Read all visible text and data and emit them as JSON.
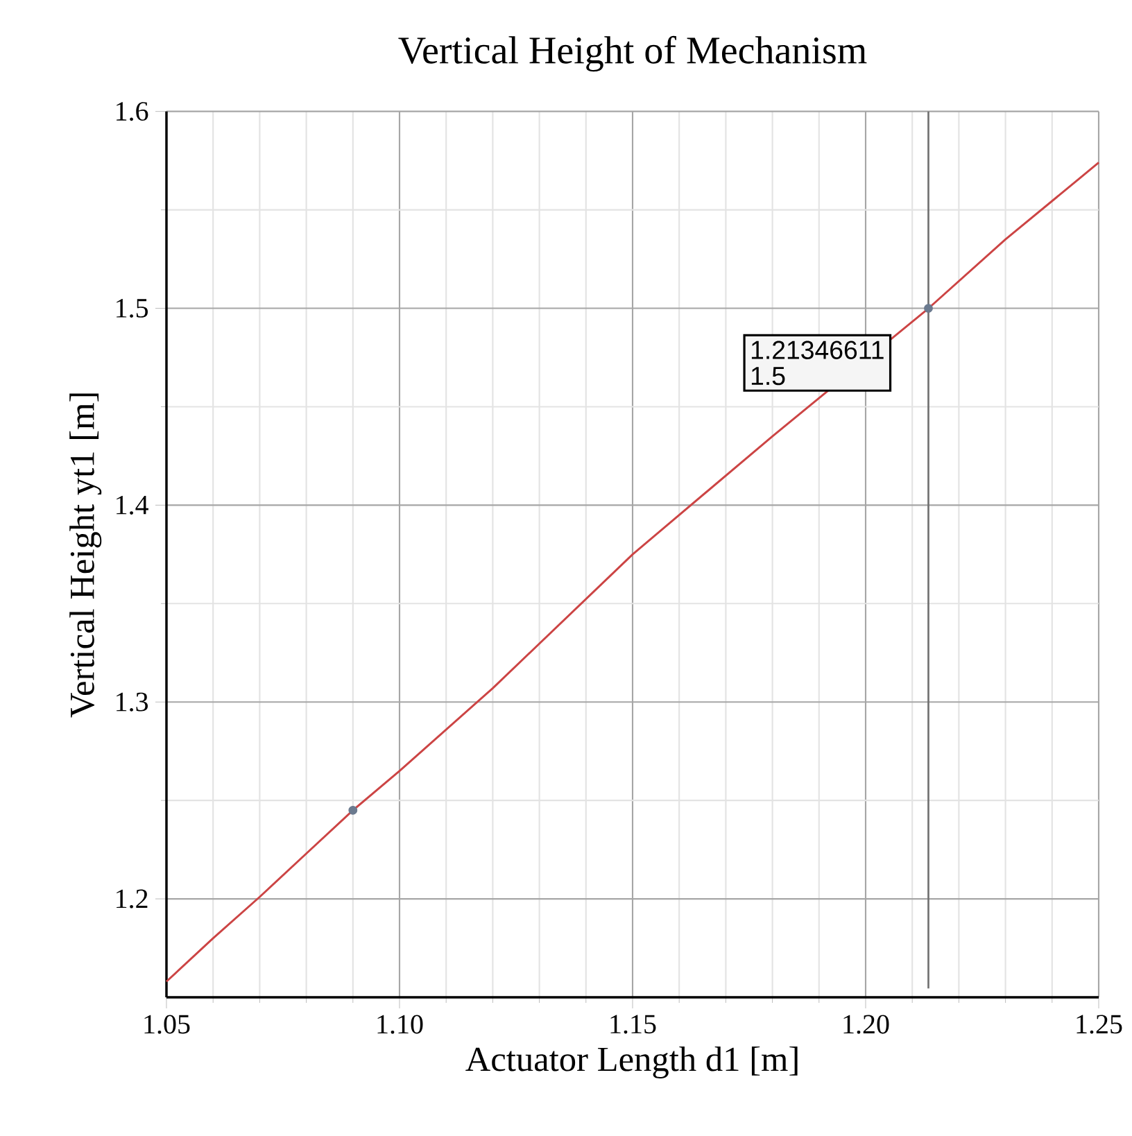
{
  "chart_data": {
    "type": "line",
    "title": "Vertical Height of Mechanism",
    "xlabel": "Actuator Length d1  [m]",
    "ylabel": "Vertical Height  yt1 [m]",
    "x": [
      1.05,
      1.06,
      1.07,
      1.08,
      1.09,
      1.1,
      1.12,
      1.15,
      1.18,
      1.2135,
      1.23,
      1.25
    ],
    "series": [
      {
        "color": "#cc4444",
        "values": [
          1.158,
          1.18,
          1.201,
          1.223,
          1.245,
          1.265,
          1.307,
          1.375,
          1.435,
          1.5,
          1.535,
          1.574
        ]
      },
      {
        "type": "scatter",
        "color": "#6b7a8f",
        "x": [
          1.09,
          1.21346611
        ],
        "values": [
          1.245,
          1.5
        ]
      }
    ],
    "xlim": [
      1.05,
      1.25
    ],
    "ylim": [
      1.15,
      1.6
    ],
    "xticks": [
      {
        "value": 1.05,
        "label": "1.05"
      },
      {
        "value": 1.1,
        "label": "1.10"
      },
      {
        "value": 1.15,
        "label": "1.15"
      },
      {
        "value": 1.2,
        "label": "1.20"
      },
      {
        "value": 1.25,
        "label": "1.25"
      }
    ],
    "yticks": [
      1.2,
      1.3,
      1.4,
      1.5,
      1.6
    ],
    "grid": true,
    "ref_lines": [
      {
        "axis": "x",
        "value": 1.21346611,
        "color": "#707070"
      }
    ],
    "annotations": [
      {
        "text": "1.21346611",
        "x": 1.21346611,
        "y": 1.5
      },
      "1.5"
    ]
  }
}
